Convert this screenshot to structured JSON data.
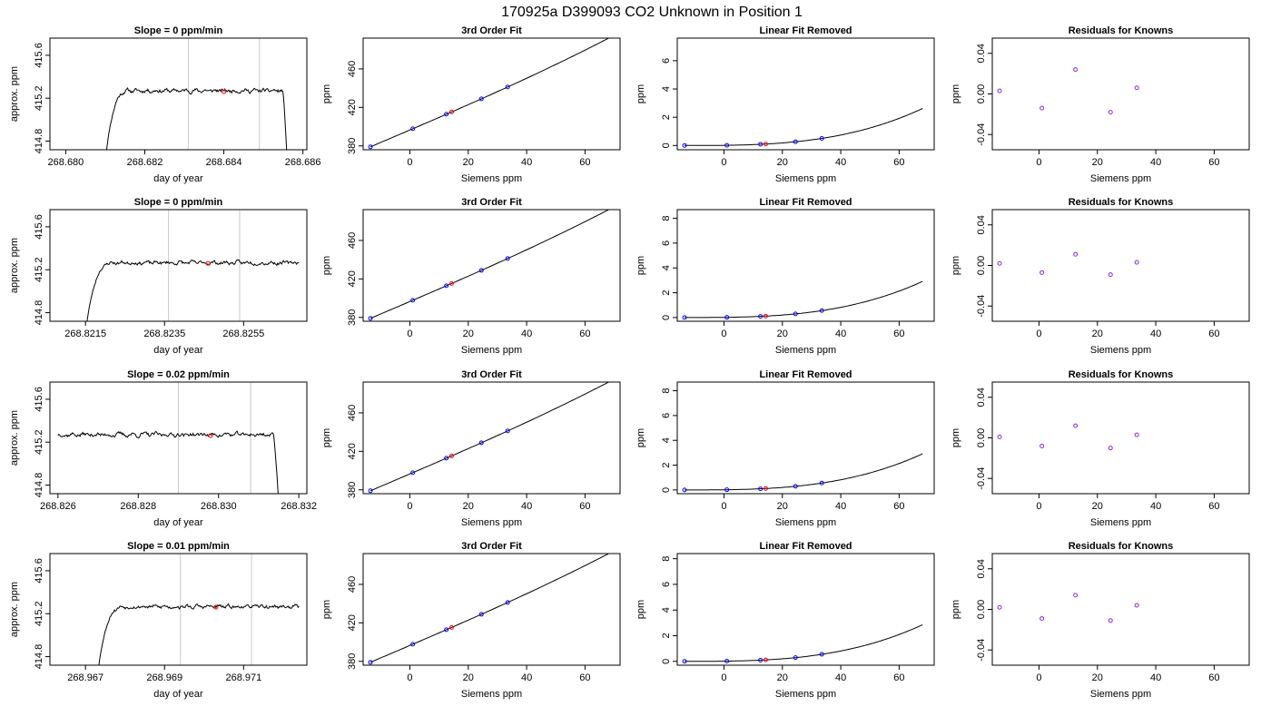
{
  "suptitle": "170925a      D399093    CO2 Unknown in Position  1",
  "colors": {
    "line": "#000000",
    "frame": "#000000",
    "vline": "#c8c8c8",
    "known_point": "#0000ff",
    "unknown_point": "#ff0000",
    "residual_point": "#8a2be2"
  },
  "chart_data": [
    {
      "type": "line",
      "row": 1,
      "panel": "trace",
      "title": "Slope =  0  ppm/min",
      "xlabel": "day of year",
      "ylabel": "approx. ppm",
      "xlim": [
        268.6796,
        268.6861
      ],
      "ylim": [
        414.72,
        415.76
      ],
      "xticks": [
        268.68,
        268.682,
        268.684,
        268.686
      ],
      "xtick_labels": [
        "268.680",
        "268.682",
        "268.684",
        "268.686"
      ],
      "yticks": [
        414.8,
        415.2,
        415.6
      ],
      "ytick_labels": [
        "414.8",
        "415.2",
        "415.6"
      ],
      "vlines": [
        268.6831,
        268.6849
      ],
      "trace": {
        "t0": 268.681,
        "t1": 268.6856,
        "base": 415.27,
        "noise": 0.012,
        "seed": 11,
        "rise": true,
        "drop": true
      },
      "highlight": {
        "x": 268.684,
        "y": 415.26
      }
    },
    {
      "type": "line",
      "row": 1,
      "panel": "fit",
      "title": "3rd Order Fit",
      "xlabel": "Siemens ppm",
      "ylabel": "ppm",
      "xlim": [
        -16,
        72
      ],
      "ylim": [
        376,
        492
      ],
      "xticks": [
        0,
        20,
        40,
        60
      ],
      "xtick_labels": [
        "0",
        "20",
        "40",
        "60"
      ],
      "yticks": [
        380,
        420,
        460
      ],
      "ytick_labels": [
        "380",
        "420",
        "460"
      ],
      "curve": {
        "c0": 396.5,
        "c1": 1.3,
        "c2": 0.00055,
        "c3": 1.4e-05
      },
      "known_x": [
        -13.5,
        1.0,
        12.5,
        24.5,
        33.5
      ],
      "unknown_x": [
        14.3
      ]
    },
    {
      "type": "line",
      "row": 1,
      "panel": "linear_removed",
      "title": "Linear Fit Removed",
      "xlabel": "Siemens ppm",
      "ylabel": "ppm",
      "xlim": [
        -16,
        72
      ],
      "ylim": [
        -0.3,
        7.6
      ],
      "xticks": [
        0,
        20,
        40,
        60
      ],
      "xtick_labels": [
        "0",
        "20",
        "40",
        "60"
      ],
      "yticks": [
        0,
        2,
        4,
        6
      ],
      "ytick_labels": [
        "0",
        "2",
        "4",
        "6"
      ],
      "curve": {
        "k": 0.00045,
        "x0": -13.5,
        "x1": 68
      },
      "known_x": [
        -13.5,
        1.0,
        12.5,
        24.5,
        33.5
      ],
      "unknown_x": [
        14.3
      ]
    },
    {
      "type": "scatter",
      "row": 1,
      "panel": "residuals",
      "title": "Residuals for Knowns",
      "xlabel": "Siemens ppm",
      "ylabel": "ppm",
      "xlim": [
        -16,
        72
      ],
      "ylim": [
        -0.055,
        0.055
      ],
      "xticks": [
        0,
        20,
        40,
        60
      ],
      "xtick_labels": [
        "0",
        "20",
        "40",
        "60"
      ],
      "yticks": [
        -0.04,
        0.0,
        0.04
      ],
      "ytick_labels": [
        "-0.04",
        "0.00",
        "0.04"
      ],
      "x": [
        -13.5,
        1.0,
        12.5,
        24.5,
        33.5
      ],
      "y": [
        0.003,
        -0.014,
        0.024,
        -0.018,
        0.006
      ]
    },
    {
      "type": "line",
      "row": 2,
      "panel": "trace",
      "title": "Slope =  0  ppm/min",
      "xlabel": "day of year",
      "ylabel": "approx. ppm",
      "xlim": [
        268.8206,
        268.8271
      ],
      "ylim": [
        414.72,
        415.76
      ],
      "xticks": [
        268.8215,
        268.8235,
        268.8255
      ],
      "xtick_labels": [
        "268.8215",
        "268.8235",
        "268.8255"
      ],
      "yticks": [
        414.8,
        415.2,
        415.6
      ],
      "ytick_labels": [
        "414.8",
        "415.2",
        "415.6"
      ],
      "vlines": [
        268.8236,
        268.8254
      ],
      "trace": {
        "t0": 268.8215,
        "t1": 268.8269,
        "base": 415.265,
        "noise": 0.012,
        "seed": 23,
        "rise": true,
        "drop": false
      },
      "highlight": {
        "x": 268.8246,
        "y": 415.26
      }
    },
    {
      "type": "line",
      "row": 2,
      "panel": "fit",
      "title": "3rd Order Fit",
      "xlabel": "Siemens ppm",
      "ylabel": "ppm",
      "xlim": [
        -16,
        72
      ],
      "ylim": [
        376,
        492
      ],
      "xticks": [
        0,
        20,
        40,
        60
      ],
      "xtick_labels": [
        "0",
        "20",
        "40",
        "60"
      ],
      "yticks": [
        380,
        420,
        460
      ],
      "ytick_labels": [
        "380",
        "420",
        "460"
      ],
      "curve": {
        "c0": 396.5,
        "c1": 1.3,
        "c2": 0.00055,
        "c3": 1.4e-05
      },
      "known_x": [
        -13.5,
        1.0,
        12.5,
        24.5,
        33.5
      ],
      "unknown_x": [
        14.3
      ]
    },
    {
      "type": "line",
      "row": 2,
      "panel": "linear_removed",
      "title": "Linear Fit Removed",
      "xlabel": "Siemens ppm",
      "ylabel": "ppm",
      "xlim": [
        -16,
        72
      ],
      "ylim": [
        -0.3,
        8.7
      ],
      "xticks": [
        0,
        20,
        40,
        60
      ],
      "xtick_labels": [
        "0",
        "20",
        "40",
        "60"
      ],
      "yticks": [
        0,
        2,
        4,
        6,
        8
      ],
      "ytick_labels": [
        "0",
        "2",
        "4",
        "6",
        "8"
      ],
      "curve": {
        "k": 0.0005,
        "x0": -13.5,
        "x1": 68
      },
      "known_x": [
        -13.5,
        1.0,
        12.5,
        24.5,
        33.5
      ],
      "unknown_x": [
        14.3
      ]
    },
    {
      "type": "scatter",
      "row": 2,
      "panel": "residuals",
      "title": "Residuals for Knowns",
      "xlabel": "Siemens ppm",
      "ylabel": "ppm",
      "xlim": [
        -16,
        72
      ],
      "ylim": [
        -0.055,
        0.055
      ],
      "xticks": [
        0,
        20,
        40,
        60
      ],
      "xtick_labels": [
        "0",
        "20",
        "40",
        "60"
      ],
      "yticks": [
        -0.04,
        0.0,
        0.04
      ],
      "ytick_labels": [
        "-0.04",
        "0.00",
        "0.04"
      ],
      "x": [
        -13.5,
        1.0,
        12.5,
        24.5,
        33.5
      ],
      "y": [
        0.002,
        -0.007,
        0.011,
        -0.009,
        0.003
      ]
    },
    {
      "type": "line",
      "row": 3,
      "panel": "trace",
      "title": "Slope =  0.02  ppm/min",
      "xlabel": "day of year",
      "ylabel": "approx. ppm",
      "xlim": [
        268.8258,
        268.8322
      ],
      "ylim": [
        414.72,
        415.76
      ],
      "xticks": [
        268.826,
        268.828,
        268.83,
        268.832
      ],
      "xtick_labels": [
        "268.826",
        "268.828",
        "268.830",
        "268.832"
      ],
      "yticks": [
        414.8,
        415.2,
        415.6
      ],
      "ytick_labels": [
        "414.8",
        "415.2",
        "415.6"
      ],
      "vlines": [
        268.829,
        268.8308
      ],
      "trace": {
        "t0": 268.826,
        "t1": 268.8315,
        "base": 415.27,
        "noise": 0.014,
        "seed": 37,
        "rise": false,
        "drop": true
      },
      "highlight": {
        "x": 268.8298,
        "y": 415.26
      }
    },
    {
      "type": "line",
      "row": 3,
      "panel": "fit",
      "title": "3rd Order Fit",
      "xlabel": "Siemens ppm",
      "ylabel": "ppm",
      "xlim": [
        -16,
        72
      ],
      "ylim": [
        376,
        492
      ],
      "xticks": [
        0,
        20,
        40,
        60
      ],
      "xtick_labels": [
        "0",
        "20",
        "40",
        "60"
      ],
      "yticks": [
        380,
        420,
        460
      ],
      "ytick_labels": [
        "380",
        "420",
        "460"
      ],
      "curve": {
        "c0": 396.5,
        "c1": 1.3,
        "c2": 0.00055,
        "c3": 1.4e-05
      },
      "known_x": [
        -13.5,
        1.0,
        12.5,
        24.5,
        33.5
      ],
      "unknown_x": [
        14.3
      ]
    },
    {
      "type": "line",
      "row": 3,
      "panel": "linear_removed",
      "title": "Linear Fit Removed",
      "xlabel": "Siemens ppm",
      "ylabel": "ppm",
      "xlim": [
        -16,
        72
      ],
      "ylim": [
        -0.3,
        8.7
      ],
      "xticks": [
        0,
        20,
        40,
        60
      ],
      "xtick_labels": [
        "0",
        "20",
        "40",
        "60"
      ],
      "yticks": [
        0,
        2,
        4,
        6,
        8
      ],
      "ytick_labels": [
        "0",
        "2",
        "4",
        "6",
        "8"
      ],
      "curve": {
        "k": 0.0005,
        "x0": -13.5,
        "x1": 68
      },
      "known_x": [
        -13.5,
        1.0,
        12.5,
        24.5,
        33.5
      ],
      "unknown_x": [
        14.3
      ]
    },
    {
      "type": "scatter",
      "row": 3,
      "panel": "residuals",
      "title": "Residuals for Knowns",
      "xlabel": "Siemens ppm",
      "ylabel": "ppm",
      "xlim": [
        -16,
        72
      ],
      "ylim": [
        -0.055,
        0.055
      ],
      "xticks": [
        0,
        20,
        40,
        60
      ],
      "xtick_labels": [
        "0",
        "20",
        "40",
        "60"
      ],
      "yticks": [
        -0.04,
        0.0,
        0.04
      ],
      "ytick_labels": [
        "-0.04",
        "0.00",
        "0.04"
      ],
      "x": [
        -13.5,
        1.0,
        12.5,
        24.5,
        33.5
      ],
      "y": [
        0.001,
        -0.008,
        0.012,
        -0.01,
        0.003
      ]
    },
    {
      "type": "line",
      "row": 4,
      "panel": "trace",
      "title": "Slope =  0.01  ppm/min",
      "xlabel": "day of year",
      "ylabel": "approx. ppm",
      "xlim": [
        268.9661,
        268.9726
      ],
      "ylim": [
        414.72,
        415.76
      ],
      "xticks": [
        268.967,
        268.969,
        268.971
      ],
      "xtick_labels": [
        "268.967",
        "268.969",
        "268.971"
      ],
      "yticks": [
        414.8,
        415.2,
        415.6
      ],
      "ytick_labels": [
        "414.8",
        "415.2",
        "415.6"
      ],
      "vlines": [
        268.9694,
        268.9712
      ],
      "trace": {
        "t0": 268.9673,
        "t1": 268.9724,
        "base": 415.265,
        "noise": 0.012,
        "seed": 53,
        "rise": true,
        "drop": false
      },
      "highlight": {
        "x": 268.9703,
        "y": 415.26
      }
    },
    {
      "type": "line",
      "row": 4,
      "panel": "fit",
      "title": "3rd Order Fit",
      "xlabel": "Siemens ppm",
      "ylabel": "ppm",
      "xlim": [
        -16,
        72
      ],
      "ylim": [
        376,
        492
      ],
      "xticks": [
        0,
        20,
        40,
        60
      ],
      "xtick_labels": [
        "0",
        "20",
        "40",
        "60"
      ],
      "yticks": [
        380,
        420,
        460
      ],
      "ytick_labels": [
        "380",
        "420",
        "460"
      ],
      "curve": {
        "c0": 396.5,
        "c1": 1.3,
        "c2": 0.00055,
        "c3": 1.4e-05
      },
      "known_x": [
        -13.5,
        1.0,
        12.5,
        24.5,
        33.5
      ],
      "unknown_x": [
        14.3
      ]
    },
    {
      "type": "line",
      "row": 4,
      "panel": "linear_removed",
      "title": "Linear Fit Removed",
      "xlabel": "Siemens ppm",
      "ylabel": "ppm",
      "xlim": [
        -16,
        72
      ],
      "ylim": [
        -0.3,
        8.4
      ],
      "xticks": [
        0,
        20,
        40,
        60
      ],
      "xtick_labels": [
        "0",
        "20",
        "40",
        "60"
      ],
      "yticks": [
        0,
        2,
        4,
        6,
        8
      ],
      "ytick_labels": [
        "0",
        "2",
        "4",
        "6",
        "8"
      ],
      "curve": {
        "k": 0.00049,
        "x0": -13.5,
        "x1": 68
      },
      "known_x": [
        -13.5,
        1.0,
        12.5,
        24.5,
        33.5
      ],
      "unknown_x": [
        14.3
      ]
    },
    {
      "type": "scatter",
      "row": 4,
      "panel": "residuals",
      "title": "Residuals for Knowns",
      "xlabel": "Siemens ppm",
      "ylabel": "ppm",
      "xlim": [
        -16,
        72
      ],
      "ylim": [
        -0.055,
        0.055
      ],
      "xticks": [
        0,
        20,
        40,
        60
      ],
      "xtick_labels": [
        "0",
        "20",
        "40",
        "60"
      ],
      "yticks": [
        -0.04,
        0.0,
        0.04
      ],
      "ytick_labels": [
        "-0.04",
        "0.00",
        "0.04"
      ],
      "x": [
        -13.5,
        1.0,
        12.5,
        24.5,
        33.5
      ],
      "y": [
        0.002,
        -0.009,
        0.014,
        -0.011,
        0.004
      ]
    }
  ]
}
